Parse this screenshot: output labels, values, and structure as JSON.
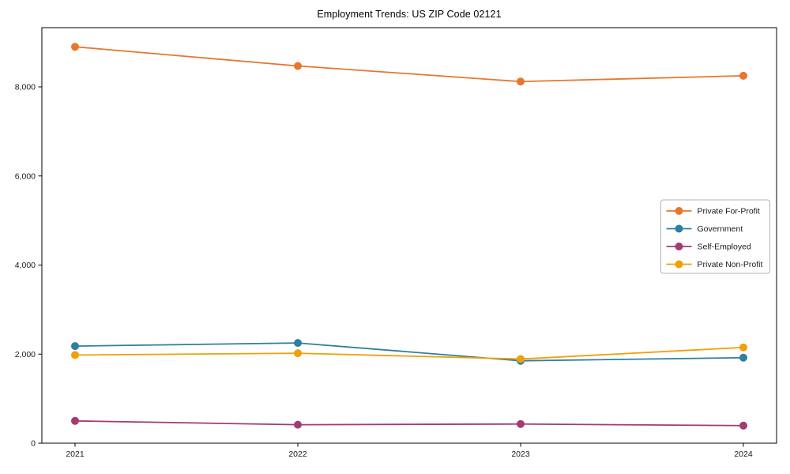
{
  "page": {
    "title": "Employment Trends: US ZIP Code 02121"
  },
  "chart_data": {
    "type": "line",
    "title": "Employment Trends: US ZIP Code 02121",
    "categories": [
      "2021",
      "2022",
      "2023",
      "2024"
    ],
    "series": [
      {
        "name": "Private For-Profit",
        "color": "#E8762C",
        "values": [
          8900,
          8470,
          8120,
          8250
        ]
      },
      {
        "name": "Government",
        "color": "#2E7FA0",
        "values": [
          2180,
          2250,
          1850,
          1920
        ]
      },
      {
        "name": "Self-Employed",
        "color": "#A23B72",
        "values": [
          500,
          415,
          430,
          395
        ]
      },
      {
        "name": "Private Non-Profit",
        "color": "#F0A008",
        "values": [
          1980,
          2020,
          1890,
          2150
        ]
      }
    ],
    "xlabel": "",
    "ylabel": "",
    "yticks": [
      0,
      2000,
      4000,
      6000,
      8000
    ],
    "ytick_labels": [
      "0",
      "2,000",
      "4,000",
      "6,000",
      "8,000"
    ],
    "ylim": [
      0,
      9330
    ],
    "grid": false,
    "legend_position": "center-right",
    "marker": "circle",
    "axis_color": "#000000",
    "text_color": "#1a1a1a",
    "background": "#ffffff"
  }
}
